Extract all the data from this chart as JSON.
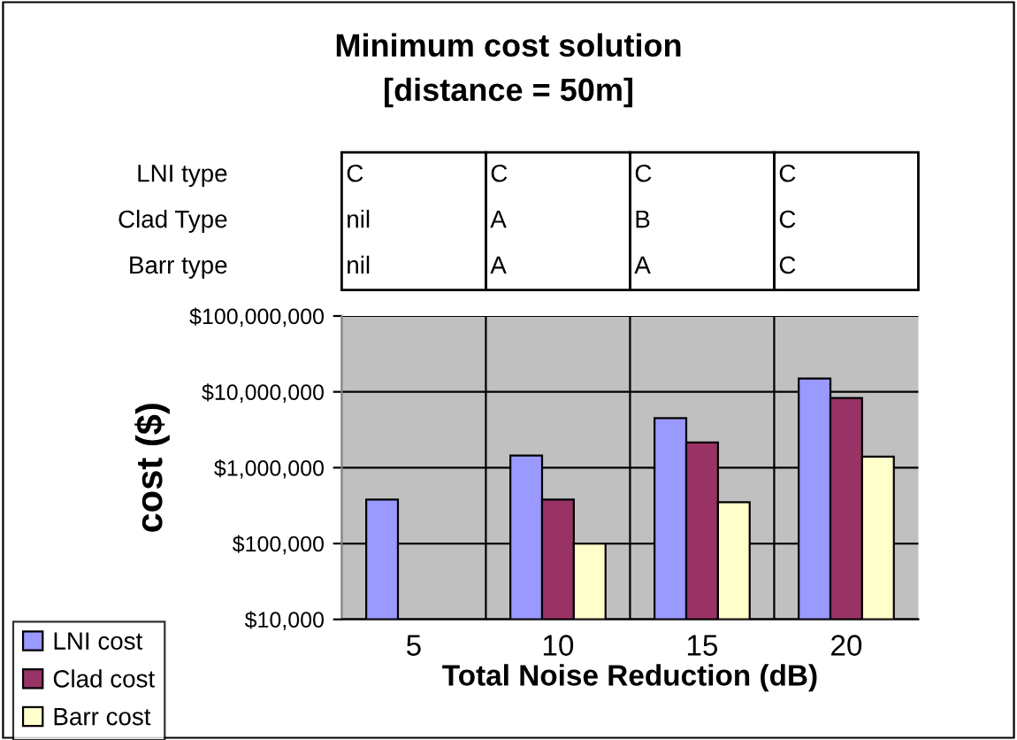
{
  "chart_data": {
    "type": "bar",
    "title": "Minimum cost solution",
    "subtitle": "[distance = 50m]",
    "xlabel": "Total Noise Reduction (dB)",
    "ylabel": "cost ($)",
    "categories": [
      "5",
      "10",
      "15",
      "20"
    ],
    "series": [
      {
        "name": "LNI cost",
        "color": "#9999ff",
        "values": [
          380000,
          1450000,
          4500000,
          15000000
        ]
      },
      {
        "name": "Clad cost",
        "color": "#993366",
        "values": [
          null,
          380000,
          2150000,
          8300000
        ]
      },
      {
        "name": "Barr cost",
        "color": "#ffffcc",
        "values": [
          null,
          100000,
          350000,
          1400000
        ]
      }
    ],
    "log": true,
    "ylim": [
      10000,
      100000000
    ],
    "yticks": [
      {
        "value": 10000,
        "label": "$10,000"
      },
      {
        "value": 100000,
        "label": "$100,000"
      },
      {
        "value": 1000000,
        "label": "$1,000,000"
      },
      {
        "value": 10000000,
        "label": "$10,000,000"
      },
      {
        "value": 100000000,
        "label": "$100,000,000"
      }
    ],
    "grid": true,
    "legend": "bottom left",
    "annotations": [
      "LNI type",
      "C",
      "C",
      "C",
      "C",
      "Clad Type",
      "nil",
      "A",
      "B",
      "C",
      "Barr type",
      "nil",
      "A",
      "A",
      "C"
    ]
  }
}
